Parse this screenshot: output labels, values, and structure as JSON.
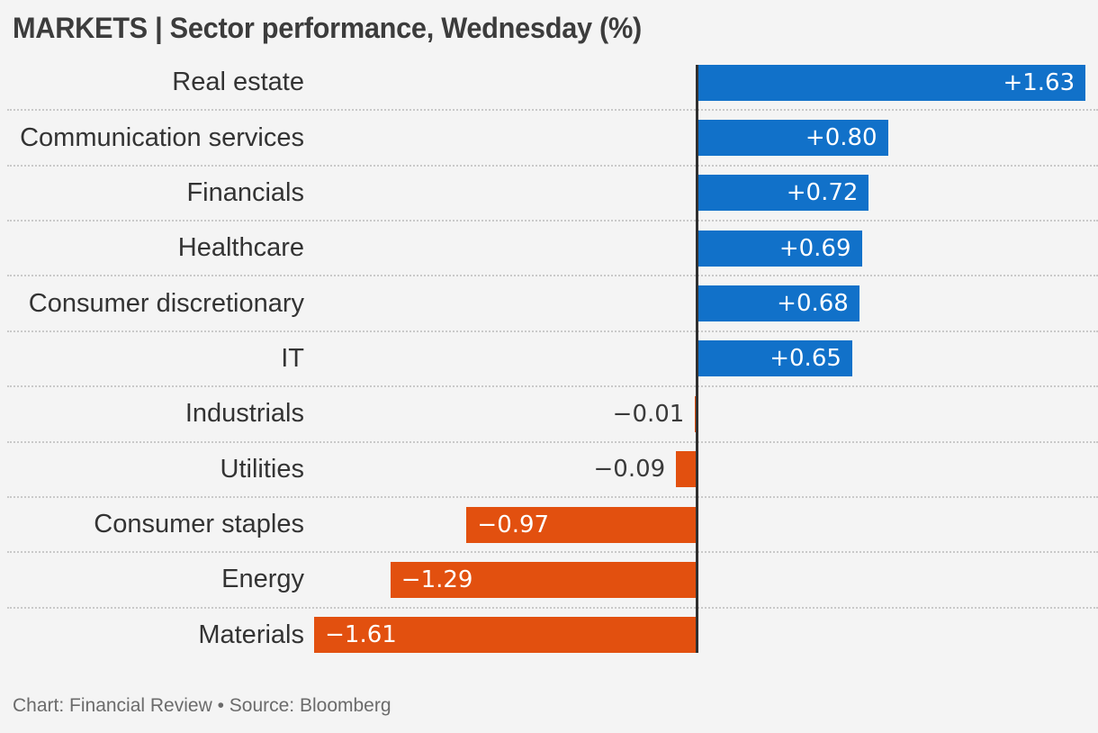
{
  "header": {
    "title": "MARKETS | Sector performance, Wednesday (%)"
  },
  "footer": {
    "text": "Chart: Financial Review • Source: Bloomberg"
  },
  "colors": {
    "positive_bar": "#1171c9",
    "negative_bar": "#e2500f",
    "background": "#f4f4f4",
    "axis_line": "#303030",
    "category_text": "#333333",
    "value_text_inside": "#ffffff",
    "value_text_outside": "#3a3a3a",
    "separator": "#c9c9c9",
    "title_text": "#3c3c3c",
    "footer_text": "#6b6b6b"
  },
  "chart_data": {
    "type": "bar",
    "orientation": "horizontal",
    "title": "MARKETS | Sector performance, Wednesday (%)",
    "unit": "%",
    "categories": [
      "Real estate",
      "Communication services",
      "Financials",
      "Healthcare",
      "Consumer discretionary",
      "IT",
      "Industrials",
      "Utilities",
      "Consumer staples",
      "Energy",
      "Materials"
    ],
    "values": [
      1.63,
      0.8,
      0.72,
      0.69,
      0.68,
      0.65,
      -0.01,
      -0.09,
      -0.97,
      -1.29,
      -1.61
    ],
    "value_labels": [
      "+1.63",
      "+0.80",
      "+0.72",
      "+0.69",
      "+0.68",
      "+0.65",
      "−0.01",
      "−0.09",
      "−0.97",
      "−1.29",
      "−1.61"
    ],
    "xlim": [
      -1.63,
      1.68
    ],
    "grid": "dotted-row-separators",
    "legend": "none",
    "value_label_placement": "inside-bar-end; outside for |v| < 0.3",
    "source": "Bloomberg",
    "credit": "Financial Review"
  }
}
